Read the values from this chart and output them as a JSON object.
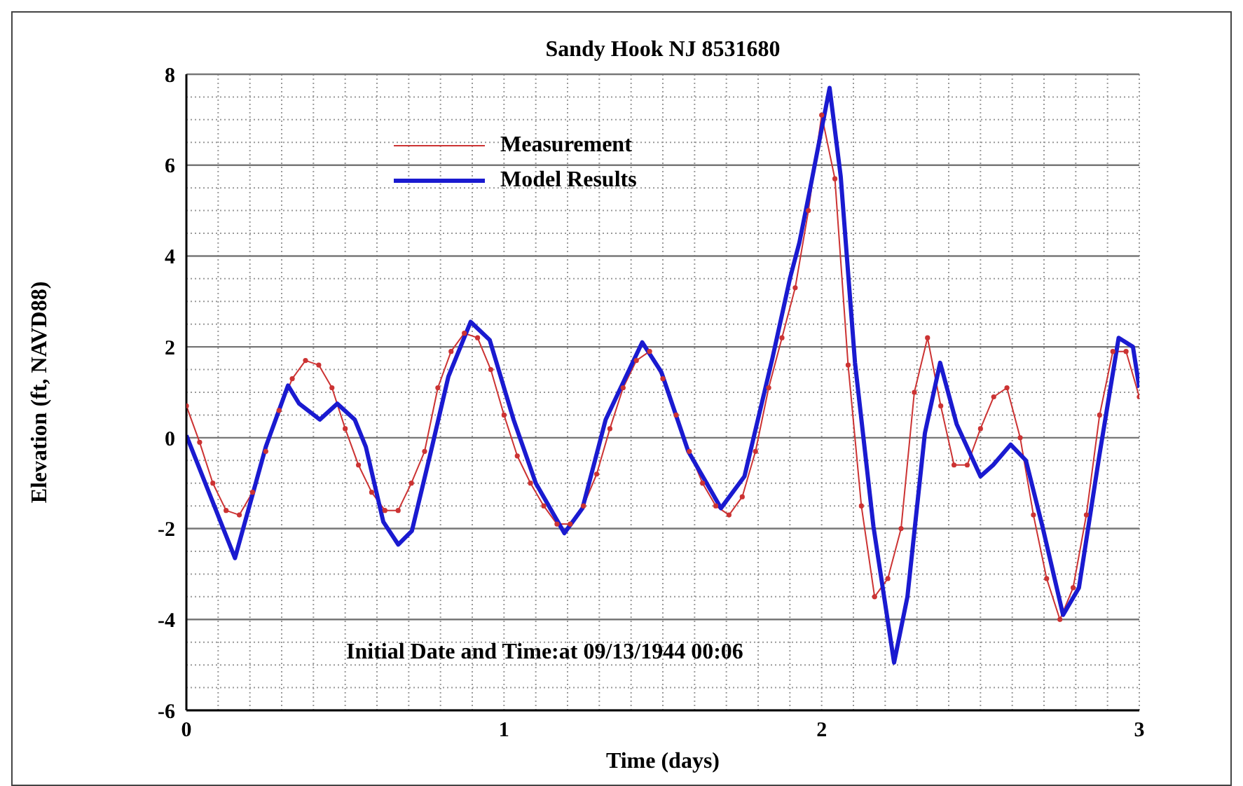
{
  "chart_data": {
    "type": "line",
    "title": "Sandy Hook NJ 8531680",
    "xlabel": "Time (days)",
    "ylabel": "Elevation (ft, NAVD88)",
    "annotations": [
      "Initial Date and Time:at 09/13/1944 00:06"
    ],
    "xlim": [
      0,
      3
    ],
    "xticks": [
      0,
      1,
      2,
      3
    ],
    "ylim": [
      -6,
      8
    ],
    "yticks": [
      -6,
      -4,
      -2,
      0,
      2,
      4,
      6,
      8
    ],
    "grid": true,
    "legend": "top left",
    "series": [
      {
        "name": "Measurement",
        "color": "#cc3333",
        "marker": "circle",
        "x": [
          0,
          0.0417,
          0.0833,
          0.125,
          0.1667,
          0.2083,
          0.25,
          0.2917,
          0.3333,
          0.375,
          0.4167,
          0.4583,
          0.5,
          0.5417,
          0.5833,
          0.625,
          0.6667,
          0.7083,
          0.75,
          0.7917,
          0.8333,
          0.875,
          0.9167,
          0.9583,
          1,
          1.0417,
          1.0833,
          1.125,
          1.1667,
          1.2083,
          1.25,
          1.2917,
          1.3333,
          1.375,
          1.4167,
          1.4583,
          1.5,
          1.5417,
          1.5833,
          1.625,
          1.6667,
          1.7083,
          1.75,
          1.7917,
          1.8333,
          1.875,
          1.9167,
          1.9583,
          2,
          2.0417,
          2.0833,
          2.125,
          2.1667,
          2.2083,
          2.25,
          2.2917,
          2.3333,
          2.375,
          2.4167,
          2.4583,
          2.5,
          2.5417,
          2.5833,
          2.625,
          2.6667,
          2.7083,
          2.75,
          2.7917,
          2.8333,
          2.875,
          2.9167,
          2.9583,
          3
        ],
        "values": [
          0.7,
          -0.1,
          -1.0,
          -1.6,
          -1.7,
          -1.2,
          -0.3,
          0.6,
          1.3,
          1.7,
          1.6,
          1.1,
          0.2,
          -0.6,
          -1.2,
          -1.6,
          -1.6,
          -1.0,
          -0.3,
          1.1,
          1.9,
          2.3,
          2.2,
          1.5,
          0.5,
          -0.4,
          -1.0,
          -1.5,
          -1.9,
          -1.9,
          -1.5,
          -0.8,
          0.2,
          1.1,
          1.7,
          1.9,
          1.3,
          0.5,
          -0.3,
          -1.0,
          -1.5,
          -1.7,
          -1.3,
          -0.3,
          1.1,
          2.2,
          3.3,
          5.0,
          7.1,
          5.7,
          1.6,
          -1.5,
          -3.5,
          -3.1,
          -2.0,
          1.0,
          2.2,
          0.7,
          -0.6,
          -0.6,
          0.2,
          0.9,
          1.1,
          0.0,
          -1.7,
          -3.1,
          -4.0,
          -3.3,
          -1.7,
          0.5,
          1.9,
          1.9,
          0.9
        ]
      },
      {
        "name": "Model Results",
        "color": "#1a1ad0",
        "marker": "none",
        "x": [
          0,
          0.153,
          0.25,
          0.32,
          0.355,
          0.42,
          0.475,
          0.53,
          0.565,
          0.62,
          0.667,
          0.71,
          0.77,
          0.825,
          0.895,
          0.94,
          0.955,
          1.03,
          1.1,
          1.19,
          1.247,
          1.32,
          1.435,
          1.495,
          1.58,
          1.683,
          1.757,
          1.845,
          1.9,
          1.93,
          1.96,
          2.025,
          2.06,
          2.105,
          2.163,
          2.228,
          2.27,
          2.325,
          2.373,
          2.425,
          2.5,
          2.54,
          2.595,
          2.643,
          2.695,
          2.76,
          2.81,
          2.874,
          2.935,
          2.98,
          3
        ],
        "values": [
          0.05,
          -2.65,
          -0.2,
          1.15,
          0.75,
          0.4,
          0.75,
          0.4,
          -0.2,
          -1.85,
          -2.35,
          -2.05,
          -0.3,
          1.35,
          2.55,
          2.25,
          2.15,
          0.4,
          -1.0,
          -2.1,
          -1.55,
          0.4,
          2.1,
          1.45,
          -0.3,
          -1.55,
          -0.85,
          1.75,
          3.5,
          4.3,
          5.35,
          7.7,
          5.75,
          1.65,
          -1.95,
          -4.95,
          -3.5,
          0.1,
          1.65,
          0.3,
          -0.85,
          -0.6,
          -0.15,
          -0.5,
          -1.95,
          -3.9,
          -3.3,
          -0.4,
          2.2,
          2.0,
          1.1
        ]
      }
    ]
  }
}
